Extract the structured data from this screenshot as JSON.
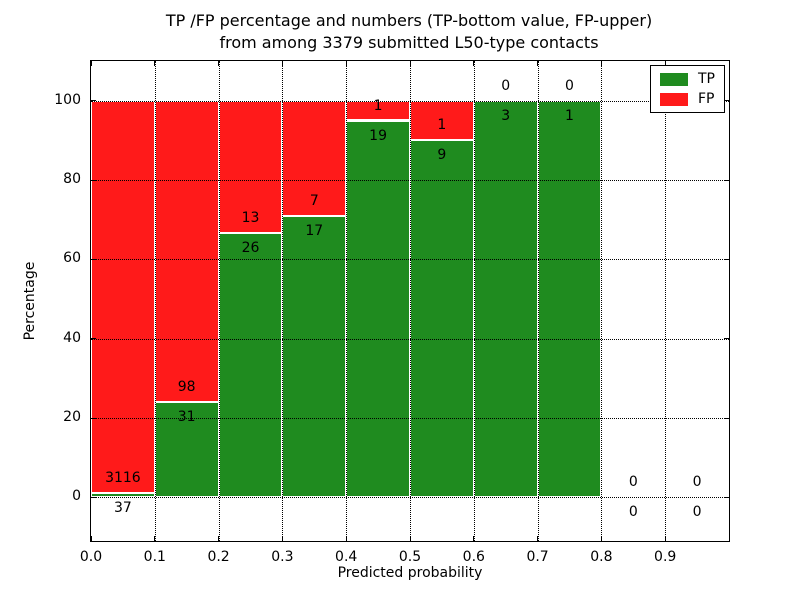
{
  "figure": {
    "title_line1": "TP /FP percentage and numbers (TP-bottom value, FP-upper)",
    "title_line2": "from among 3379 submitted L50-type contacts"
  },
  "chart_data": {
    "type": "bar",
    "stacked": true,
    "title": "TP /FP percentage and numbers (TP-bottom value, FP-upper)\nfrom among 3379 submitted L50-type contacts",
    "xlabel": "Predicted probability",
    "ylabel": "Percentage",
    "xlim": [
      0.0,
      1.0
    ],
    "ylim": [
      -11,
      110
    ],
    "xticks": [
      0.0,
      0.1,
      0.2,
      0.3,
      0.4,
      0.5,
      0.6,
      0.7,
      0.8,
      0.9
    ],
    "xtick_labels": [
      "0.0",
      "0.1",
      "0.2",
      "0.3",
      "0.4",
      "0.5",
      "0.6",
      "0.7",
      "0.8",
      "0.9"
    ],
    "yticks": [
      0,
      20,
      40,
      60,
      80,
      100
    ],
    "ytick_labels": [
      "0",
      "20",
      "40",
      "60",
      "80",
      "100"
    ],
    "grid": true,
    "total_contacts": 3379,
    "legend": {
      "position": "upper right",
      "entries": [
        {
          "label": "TP",
          "color": "#1f8b1f"
        },
        {
          "label": "FP",
          "color": "#ff1a1a"
        }
      ]
    },
    "bins": [
      {
        "x0": 0.0,
        "x1": 0.1,
        "tp": 37,
        "fp": 3116,
        "tp_pct": 1.17,
        "fp_pct": 98.83
      },
      {
        "x0": 0.1,
        "x1": 0.2,
        "tp": 31,
        "fp": 98,
        "tp_pct": 24.03,
        "fp_pct": 75.97
      },
      {
        "x0": 0.2,
        "x1": 0.3,
        "tp": 26,
        "fp": 13,
        "tp_pct": 66.67,
        "fp_pct": 33.33
      },
      {
        "x0": 0.3,
        "x1": 0.4,
        "tp": 17,
        "fp": 7,
        "tp_pct": 70.83,
        "fp_pct": 29.17
      },
      {
        "x0": 0.4,
        "x1": 0.5,
        "tp": 19,
        "fp": 1,
        "tp_pct": 95.0,
        "fp_pct": 5.0
      },
      {
        "x0": 0.5,
        "x1": 0.6,
        "tp": 9,
        "fp": 1,
        "tp_pct": 90.0,
        "fp_pct": 10.0
      },
      {
        "x0": 0.6,
        "x1": 0.7,
        "tp": 3,
        "fp": 0,
        "tp_pct": 100.0,
        "fp_pct": 0.0
      },
      {
        "x0": 0.7,
        "x1": 0.8,
        "tp": 1,
        "fp": 0,
        "tp_pct": 100.0,
        "fp_pct": 0.0
      },
      {
        "x0": 0.8,
        "x1": 0.9,
        "tp": 0,
        "fp": 0,
        "tp_pct": 0.0,
        "fp_pct": 0.0
      },
      {
        "x0": 0.9,
        "x1": 1.0,
        "tp": 0,
        "fp": 0,
        "tp_pct": 0.0,
        "fp_pct": 0.0
      }
    ],
    "colors": {
      "tp": "#1f8b1f",
      "fp": "#ff1a1a",
      "grid": "#000000",
      "frame": "#000000",
      "background": "#ffffff"
    }
  }
}
